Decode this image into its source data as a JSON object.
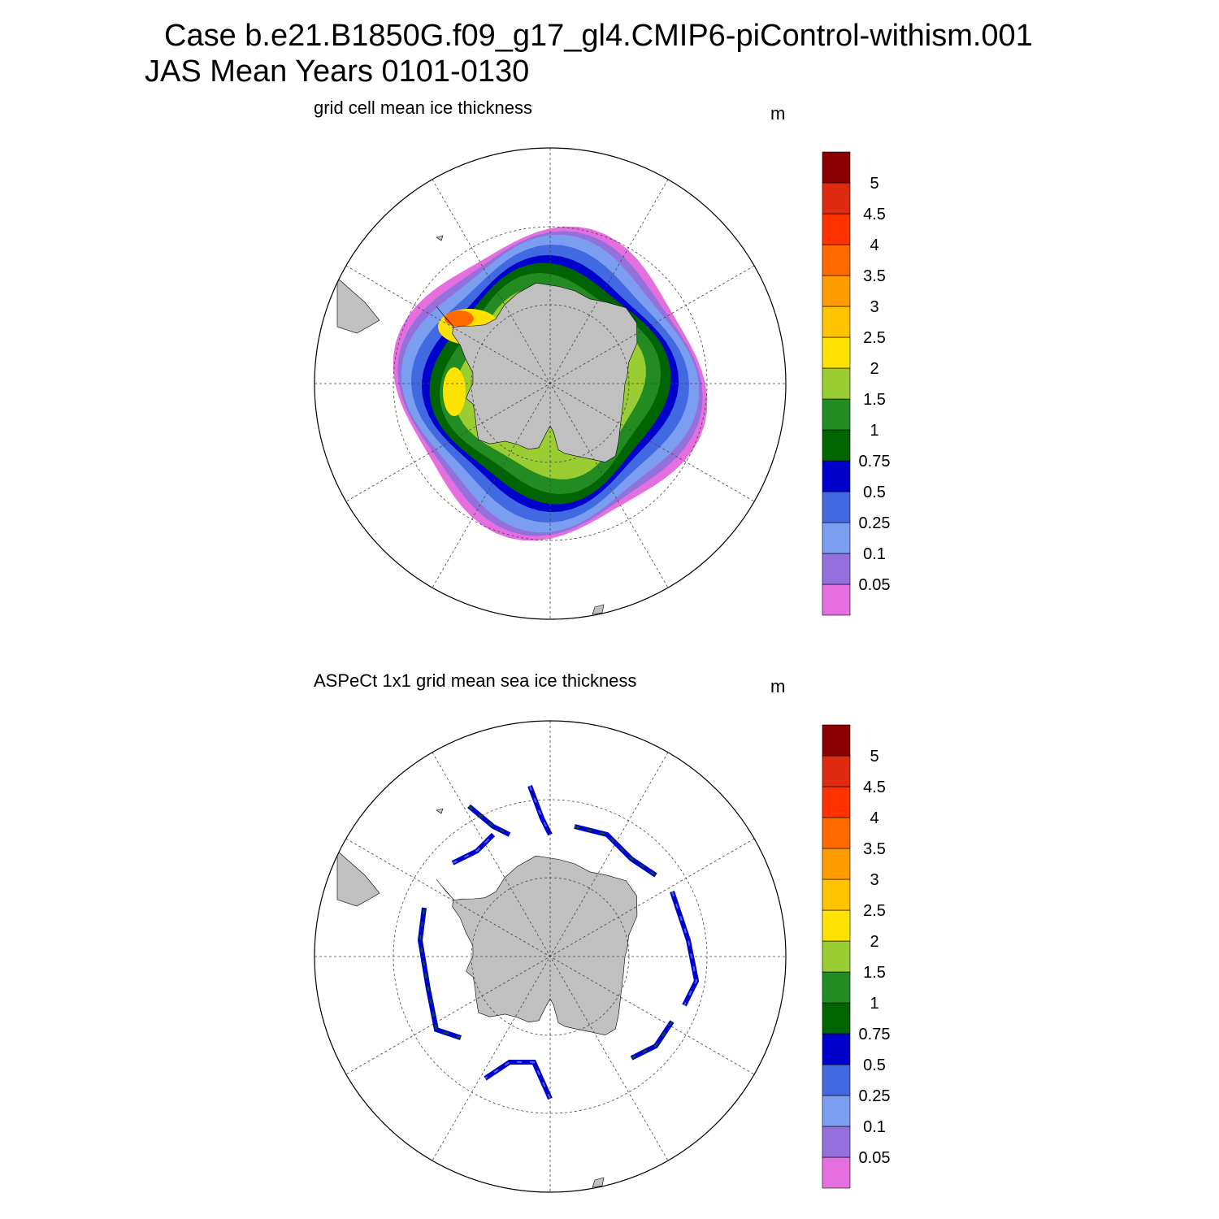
{
  "header": {
    "line1": "Case b.e21.B1850G.f09_g17_gl4.CMIP6-piControl-withism.001",
    "line2": "JAS Mean   Years 0101-0130"
  },
  "panels": [
    {
      "title": "grid cell mean ice thickness",
      "units": "m",
      "type": "model"
    },
    {
      "title": "ASPeCt 1x1 grid mean sea ice thickness",
      "units": "m",
      "type": "observation"
    }
  ],
  "colorbar": {
    "colors": [
      "#e66fe0",
      "#9370db",
      "#7b9ef0",
      "#4169e1",
      "#0000cd",
      "#006400",
      "#228b22",
      "#9acd32",
      "#ffe200",
      "#ffc300",
      "#ff9d00",
      "#ff6a00",
      "#ff3300",
      "#dd2a10",
      "#8b0000"
    ],
    "labels": [
      "0.05",
      "0.1",
      "0.25",
      "0.5",
      "0.75",
      "1",
      "1.5",
      "2",
      "2.5",
      "3",
      "3.5",
      "4",
      "4.5",
      "5"
    ]
  },
  "map": {
    "projection": "south-polar-stereographic",
    "land_color": "#c0c0c0"
  }
}
